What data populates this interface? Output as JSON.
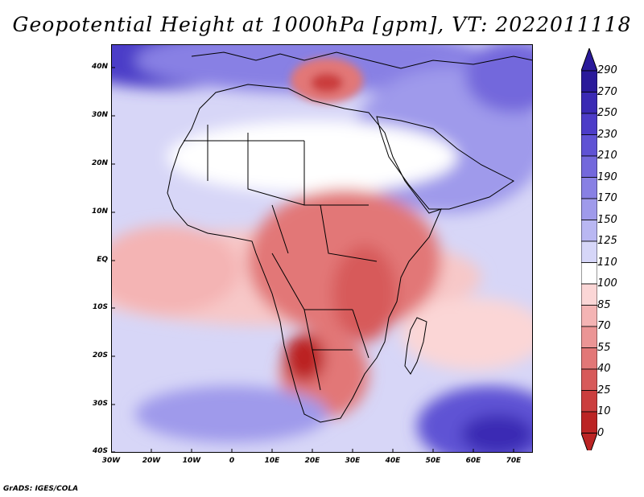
{
  "title": "Geopotential Height at 1000hPa [gpm], VT: 2022011118",
  "credit": "GrADS: IGES/COLA",
  "map": {
    "projection": "lat-lon",
    "lon_range": [
      -30,
      75
    ],
    "lat_range": [
      -40,
      45
    ],
    "lat_labels": [
      "40N",
      "30N",
      "20N",
      "10N",
      "EQ",
      "10S",
      "20S",
      "30S",
      "40S"
    ],
    "lon_labels": [
      "30W",
      "20W",
      "10W",
      "0",
      "10E",
      "20E",
      "30E",
      "40E",
      "50E",
      "60E",
      "70E"
    ]
  },
  "colorbar": {
    "labels": [
      "290",
      "270",
      "250",
      "230",
      "210",
      "190",
      "170",
      "150",
      "125",
      "110",
      "100",
      "85",
      "70",
      "55",
      "40",
      "25",
      "10",
      "0"
    ],
    "colors": [
      "#2a1a9a",
      "#3a2ab4",
      "#4c3cc8",
      "#5f52d4",
      "#7368dc",
      "#8880e4",
      "#9f9aeb",
      "#b9b7f2",
      "#d6d6f8",
      "#ffffff",
      "#fbd6d6",
      "#f4b4b4",
      "#eb9595",
      "#e27777",
      "#d75a5a",
      "#cb3e3e",
      "#bb2424"
    ]
  }
}
